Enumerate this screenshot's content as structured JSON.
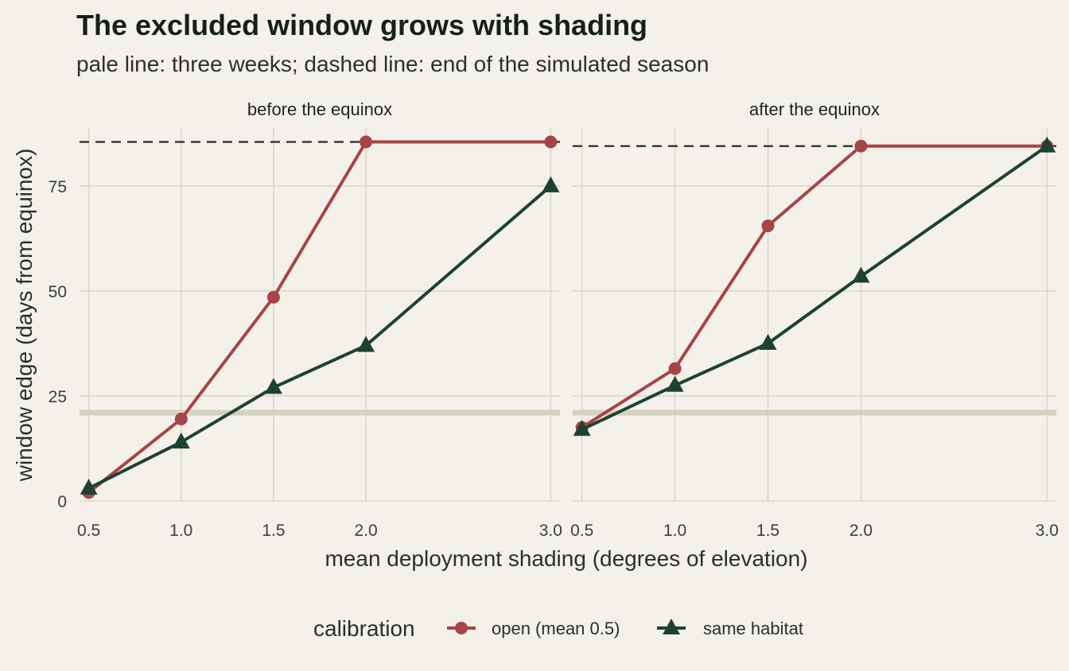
{
  "chart_data": {
    "type": "line",
    "title": "The excluded window grows with shading",
    "subtitle": "pale line: three weeks; dashed line: end of the simulated season",
    "xlabel": "mean deployment shading (degrees of elevation)",
    "ylabel": "window edge (days from equinox)",
    "x_ticks": [
      "0.5",
      "1.0",
      "1.5",
      "2.0",
      "3.0"
    ],
    "y_ticks": [
      "0",
      "25",
      "50",
      "75"
    ],
    "xlim": [
      0.45,
      3.05
    ],
    "ylim": [
      0,
      89
    ],
    "grid": true,
    "legend": {
      "title": "calibration",
      "position": "bottom",
      "entries": [
        {
          "label": "open (mean 0.5)",
          "color": "#a84446",
          "marker": "circle"
        },
        {
          "label": "same habitat",
          "color": "#1e4231",
          "marker": "triangle"
        }
      ]
    },
    "reference_lines": {
      "three_weeks": 21,
      "three_weeks_color": "#d3d3c1",
      "season_end_color": "#2a2a2a"
    },
    "panels": [
      {
        "name": "before the equinox",
        "season_end": 85.5,
        "series": [
          {
            "name": "open (mean 0.5)",
            "x": [
              0.5,
              1.0,
              1.5,
              2.0,
              3.0
            ],
            "y": [
              2,
              19.5,
              48.5,
              85.5,
              85.5
            ]
          },
          {
            "name": "same habitat",
            "x": [
              0.5,
              1.0,
              1.5,
              2.0,
              3.0
            ],
            "y": [
              3,
              14,
              27,
              37,
              75
            ]
          }
        ]
      },
      {
        "name": "after the equinox",
        "season_end": 84.5,
        "series": [
          {
            "name": "open (mean 0.5)",
            "x": [
              0.5,
              1.0,
              1.5,
              2.0,
              3.0
            ],
            "y": [
              17.5,
              31.5,
              65.5,
              84.5,
              84.5
            ]
          },
          {
            "name": "same habitat",
            "x": [
              0.5,
              1.0,
              1.5,
              2.0,
              3.0
            ],
            "y": [
              17,
              27.5,
              37.5,
              53.5,
              84.5
            ]
          }
        ]
      }
    ]
  }
}
